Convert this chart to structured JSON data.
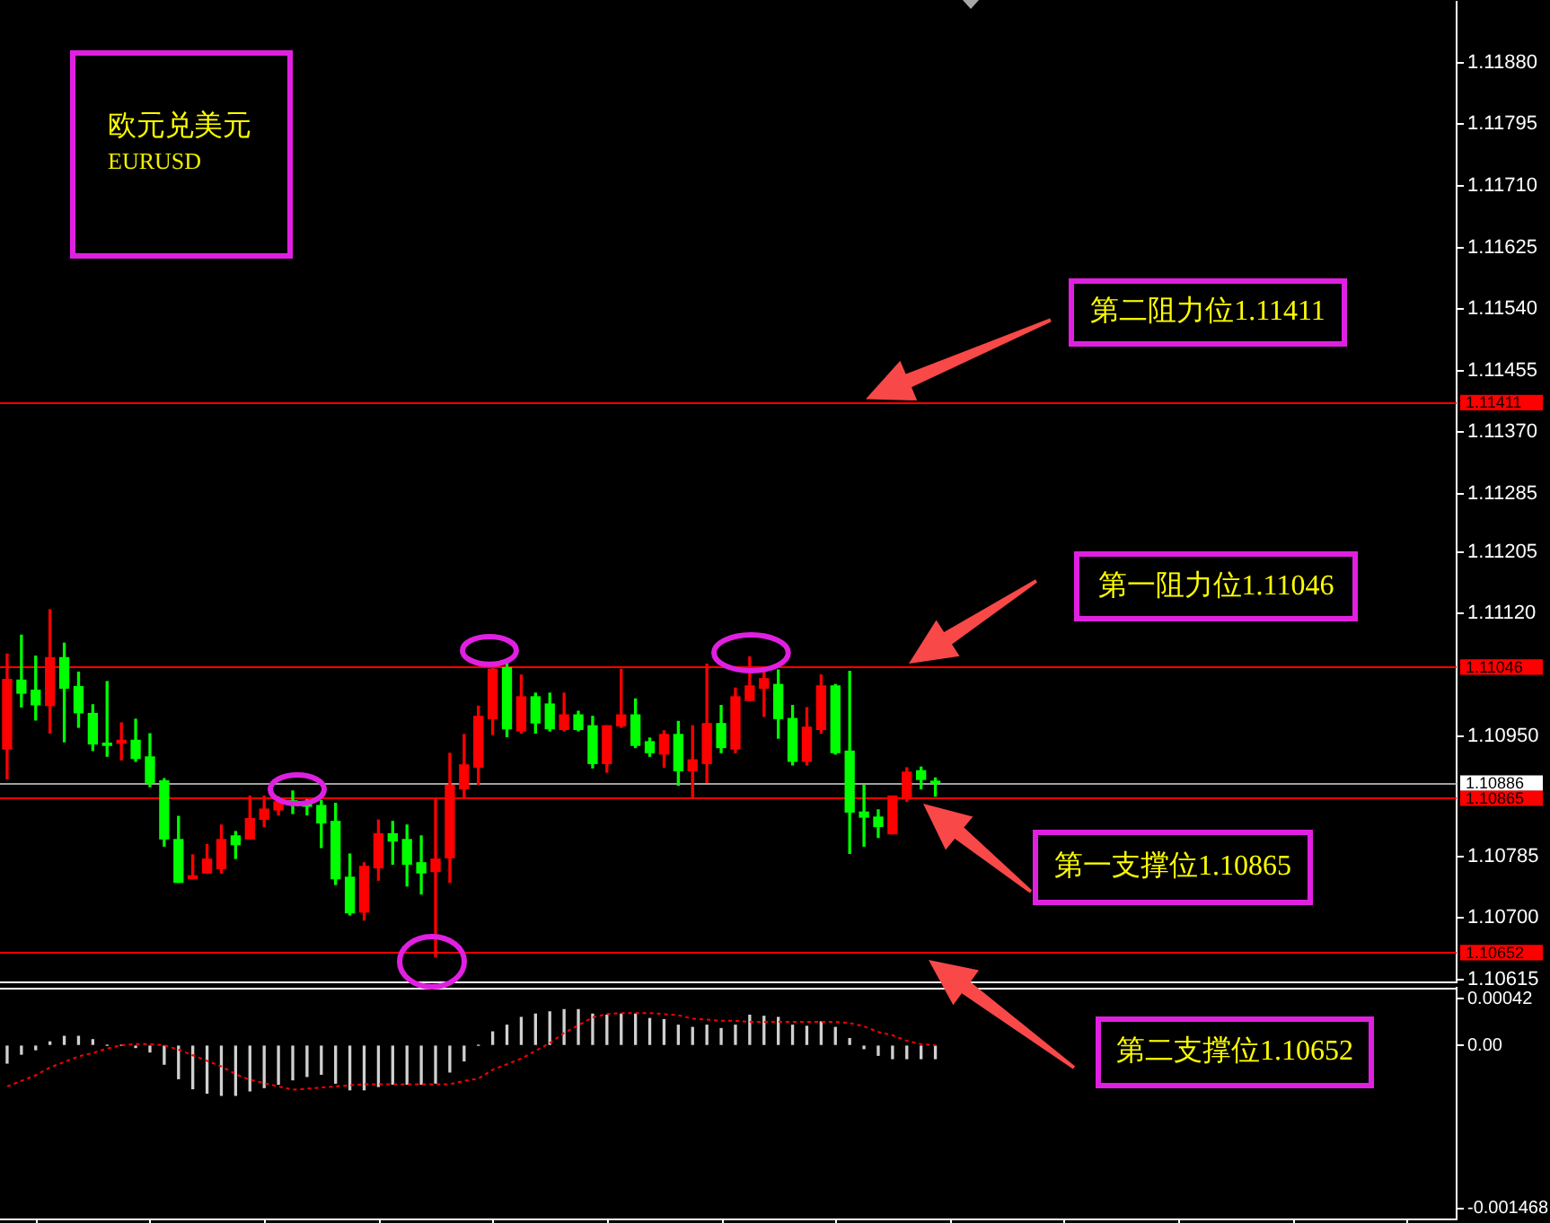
{
  "chart_data": [
    {
      "type": "candlestick",
      "title": "欧元兑美元",
      "subtitle": "EURUSD",
      "categories": [
        null,
        null,
        null,
        null,
        null,
        null,
        null,
        null,
        null,
        null,
        null,
        null,
        null,
        null,
        null,
        null,
        null,
        null,
        null,
        null,
        null,
        null,
        null,
        null,
        null,
        null,
        null,
        null,
        null,
        null,
        null,
        null,
        null,
        null,
        null,
        null,
        null,
        null,
        null,
        null,
        null,
        null,
        null,
        null,
        null,
        null,
        null,
        null,
        null,
        null,
        null,
        null,
        null,
        null,
        null,
        null,
        null,
        null,
        null,
        null,
        null,
        null,
        null,
        null,
        null,
        null,
        null,
        null,
        null,
        null,
        null,
        null,
        null,
        null,
        null,
        null,
        null,
        null,
        null,
        null,
        null,
        null,
        null,
        null,
        null,
        null,
        null,
        null,
        null,
        null,
        null,
        null,
        null,
        null,
        null,
        null,
        null,
        null,
        null,
        null,
        null,
        null
      ],
      "ohlc": [
        [
          1.10933,
          1.11064,
          1.10892,
          1.11029
        ],
        [
          1.11028,
          1.1109,
          1.10991,
          1.1101
        ],
        [
          1.11014,
          1.11061,
          1.10973,
          1.10994
        ],
        [
          1.10993,
          1.11125,
          1.10955,
          1.11059
        ],
        [
          1.11059,
          1.11079,
          1.10943,
          1.11017
        ],
        [
          1.11019,
          1.11039,
          1.10963,
          1.10983
        ],
        [
          1.10982,
          1.10994,
          1.10931,
          1.1094
        ],
        [
          1.10941,
          1.11026,
          1.10923,
          1.10938
        ],
        [
          1.10941,
          1.10969,
          1.10918,
          1.10945
        ],
        [
          1.10945,
          1.10974,
          1.10916,
          1.1092
        ],
        [
          1.10922,
          1.10954,
          1.10881,
          1.10887
        ],
        [
          1.10889,
          1.10892,
          1.10799,
          1.10809
        ],
        [
          1.10808,
          1.1084,
          1.10749,
          1.10749
        ],
        [
          1.10754,
          1.10787,
          1.10754,
          1.10758
        ],
        [
          1.10762,
          1.10801,
          1.10762,
          1.10781
        ],
        [
          1.10768,
          1.10828,
          1.10762,
          1.10808
        ],
        [
          1.10813,
          1.10819,
          1.10782,
          1.10801
        ],
        [
          1.10809,
          1.10868,
          1.10809,
          1.10837
        ],
        [
          1.10836,
          1.10868,
          1.10826,
          1.1085
        ],
        [
          1.10849,
          1.10867,
          1.10842,
          1.1086
        ],
        [
          1.1086,
          1.10875,
          1.10844,
          1.10859
        ],
        [
          1.10859,
          1.10863,
          1.10842,
          1.10854
        ],
        [
          1.10855,
          1.10862,
          1.10797,
          1.10831
        ],
        [
          1.10833,
          1.10858,
          1.10746,
          1.10754
        ],
        [
          1.10756,
          1.10788,
          1.10704,
          1.10707
        ],
        [
          1.10708,
          1.10776,
          1.10697,
          1.10771
        ],
        [
          1.10769,
          1.10835,
          1.10752,
          1.10816
        ],
        [
          1.10816,
          1.10833,
          1.10774,
          1.10806
        ],
        [
          1.10808,
          1.10828,
          1.10744,
          1.10774
        ],
        [
          1.10776,
          1.10813,
          1.10733,
          1.10762
        ],
        [
          1.10764,
          1.10864,
          1.10646,
          1.10781
        ],
        [
          1.10783,
          1.10927,
          1.10749,
          1.10883
        ],
        [
          1.10878,
          1.10953,
          1.10865,
          1.10911
        ],
        [
          1.10908,
          1.10992,
          1.10884,
          1.10978
        ],
        [
          1.10975,
          1.1105,
          1.10953,
          1.11043
        ],
        [
          1.11045,
          1.11053,
          1.1095,
          1.10961
        ],
        [
          1.10958,
          1.11035,
          1.10955,
          1.11005
        ],
        [
          1.11005,
          1.1101,
          1.10955,
          1.10969
        ],
        [
          1.10995,
          1.1101,
          1.10958,
          1.10961
        ],
        [
          1.1096,
          1.1101,
          1.10958,
          1.1098
        ],
        [
          1.1098,
          1.10985,
          1.10958,
          1.1096
        ],
        [
          1.10965,
          1.10978,
          1.10907,
          1.10913
        ],
        [
          1.10913,
          1.10965,
          1.10901,
          1.10965
        ],
        [
          1.10965,
          1.11043,
          1.10963,
          1.1098
        ],
        [
          1.1098,
          1.11002,
          1.10935,
          1.10938
        ],
        [
          1.10943,
          1.10948,
          1.10923,
          1.10928
        ],
        [
          1.10926,
          1.10958,
          1.10908,
          1.10953
        ],
        [
          1.10953,
          1.10971,
          1.10883,
          1.10903
        ],
        [
          1.10903,
          1.10965,
          1.10865,
          1.10918
        ],
        [
          1.10913,
          1.1105,
          1.10887,
          1.10968
        ],
        [
          1.10968,
          1.10993,
          1.10928,
          1.10935
        ],
        [
          1.10933,
          1.11017,
          1.10928,
          1.11005
        ],
        [
          1.11,
          1.1106,
          1.11,
          1.1102
        ],
        [
          1.11017,
          1.11042,
          1.10978,
          1.1103
        ],
        [
          1.11022,
          1.11042,
          1.10948,
          1.10975
        ],
        [
          1.10975,
          1.10993,
          1.10911,
          1.10916
        ],
        [
          1.10916,
          1.1099,
          1.10911,
          1.10963
        ],
        [
          1.1096,
          1.11035,
          1.10955,
          1.1102
        ],
        [
          1.1102,
          1.11022,
          1.10926,
          1.10928
        ],
        [
          1.1093,
          1.1104,
          1.10789,
          1.10846
        ],
        [
          1.10846,
          1.10883,
          1.10799,
          1.10839
        ],
        [
          1.10839,
          1.10849,
          1.10811,
          1.10826
        ],
        [
          1.10816,
          1.10868,
          1.10816,
          1.10868
        ],
        [
          1.10864,
          1.10907,
          1.10861,
          1.10901
        ],
        [
          1.10903,
          1.10908,
          1.10878,
          1.10891
        ],
        [
          1.10888,
          1.10893,
          1.10868,
          1.10886
        ],
        null,
        null,
        null,
        null,
        null,
        null,
        null,
        null,
        null,
        null,
        null,
        null,
        null,
        null,
        null,
        null,
        null,
        null,
        null,
        null,
        null,
        null,
        null,
        null,
        null,
        null,
        null,
        null,
        null,
        null,
        null,
        null,
        null,
        null,
        null,
        null
      ],
      "colors": [
        "#ff0000",
        "#00ff00",
        "#00ff00",
        "#ff0000",
        "#00ff00",
        "#00ff00",
        "#00ff00",
        "#00ff00",
        "#ff0000",
        "#00ff00",
        "#00ff00",
        "#00ff00",
        "#00ff00",
        "#ff0000",
        "#ff0000",
        "#ff0000",
        "#00ff00",
        "#ff0000",
        "#ff0000",
        "#ff0000",
        "#00ff00",
        "#00ff00",
        "#00ff00",
        "#00ff00",
        "#00ff00",
        "#ff0000",
        "#ff0000",
        "#00ff00",
        "#00ff00",
        "#00ff00",
        "#ff0000",
        "#ff0000",
        "#ff0000",
        "#ff0000",
        "#ff0000",
        "#00ff00",
        "#ff0000",
        "#00ff00",
        "#00ff00",
        "#ff0000",
        "#00ff00",
        "#00ff00",
        "#ff0000",
        "#ff0000",
        "#00ff00",
        "#00ff00",
        "#ff0000",
        "#00ff00",
        "#ff0000",
        "#ff0000",
        "#00ff00",
        "#ff0000",
        "#ff0000",
        "#ff0000",
        "#00ff00",
        "#00ff00",
        "#ff0000",
        "#ff0000",
        "#00ff00",
        "#00ff00",
        "#00ff00",
        "#00ff00",
        "#ff0000",
        "#ff0000",
        "#00ff00",
        "#00ff00",
        null,
        null,
        null,
        null,
        null,
        null,
        null,
        null,
        null,
        null,
        null,
        null,
        null,
        null,
        null,
        null,
        null,
        null,
        null,
        null,
        null,
        null,
        null,
        null,
        null,
        null,
        null,
        null,
        null,
        null,
        null,
        null,
        null,
        null,
        null,
        null
      ],
      "ylim": [
        1.10611,
        1.11964
      ],
      "yticks": [
        {
          "value": 1.1188,
          "label": "1.11880"
        },
        1.11795,
        {
          "value": 1.1171,
          "label": "1.11710"
        },
        1.11625,
        {
          "value": 1.1154,
          "label": "1.11540"
        },
        1.11455,
        {
          "value": 1.1137,
          "label": "1.11370"
        },
        1.11285,
        1.11205,
        {
          "value": 1.1112,
          "label": "1.11120"
        },
        {
          "value": 1.1095,
          "label": "1.10950"
        },
        1.10785,
        {
          "value": 1.107,
          "label": "1.10700"
        },
        1.10615
      ],
      "ref_lines": [
        {
          "axis": "y",
          "value": 1.11411,
          "label": "1.11411",
          "color": "#ff0000"
        },
        {
          "axis": "y",
          "value": 1.11046,
          "label": "1.11046",
          "color": "#ff0000"
        },
        {
          "axis": "y",
          "value": 1.10886,
          "label": "1.10886",
          "color": "#a0a0a0"
        },
        {
          "axis": "y",
          "value": 1.10865,
          "label": "1.10865",
          "color": "#ff0000"
        },
        {
          "axis": "y",
          "value": 1.10652,
          "label": "1.10652",
          "color": "#ff0000"
        }
      ],
      "annotations": [
        {
          "text": "第二阻力位1.11411",
          "y": 1.11411
        },
        {
          "text": "第一阻力位1.11046",
          "y": 1.11046
        },
        {
          "text": "第一支撑位1.10865",
          "y": 1.10865
        },
        {
          "text": "第二支撑位1.10652",
          "y": 1.10652
        }
      ],
      "tick_labels": "y"
    },
    {
      "type": "bar",
      "categories": [
        null,
        null,
        null,
        null,
        null,
        null,
        null,
        null,
        null,
        null,
        null,
        null,
        null,
        null,
        null,
        null,
        null,
        null,
        null,
        null,
        null,
        null,
        null,
        null,
        null,
        null,
        null,
        null,
        null,
        null,
        null,
        null,
        null,
        null,
        null,
        null,
        null,
        null,
        null,
        null,
        null,
        null,
        null,
        null,
        null,
        null,
        null,
        null,
        null,
        null,
        null,
        null,
        null,
        null,
        null,
        null,
        null,
        null,
        null,
        null,
        null,
        null,
        null,
        null,
        null,
        null,
        null,
        null,
        null,
        null,
        null,
        null,
        null,
        null,
        null,
        null,
        null,
        null,
        null,
        null,
        null,
        null,
        null,
        null,
        null,
        null,
        null,
        null,
        null,
        null,
        null,
        null,
        null,
        null,
        null,
        null,
        null,
        null,
        null,
        null,
        null,
        null
      ],
      "series": [
        {
          "type": "bar",
          "color": "#d0d0d0",
          "values": [
            -0.00016,
            -8e-05,
            -4e-05,
            3e-05,
            8e-05,
            8e-05,
            5e-05,
            0,
            0,
            -2e-05,
            -6e-05,
            -0.00017,
            -0.0003,
            -0.00039,
            -0.00043,
            -0.00045,
            -0.00045,
            -0.00041,
            -0.00038,
            -0.00035,
            -0.00031,
            -0.00028,
            -0.00026,
            -0.00034,
            -0.0004,
            -0.0004,
            -0.00037,
            -0.00035,
            -0.00035,
            -0.00035,
            -0.00034,
            -0.00024,
            -0.00014,
            0,
            0.00012,
            0.00018,
            0.00025,
            0.00028,
            0.0003,
            0.00032,
            0.00032,
            0.00028,
            0.00027,
            0.00028,
            0.00028,
            0.00024,
            0.00023,
            0.00018,
            0.00016,
            0.00018,
            0.00015,
            0.00018,
            0.00027,
            0.00026,
            0.00025,
            0.00018,
            0.00017,
            0.00021,
            0.00016,
            6e-05,
            -3e-05,
            -9e-05,
            -0.00012,
            -0.00012,
            -0.00012,
            -0.00012,
            null,
            null,
            null,
            null,
            null,
            null,
            null,
            null,
            null,
            null,
            null,
            null,
            null,
            null,
            null,
            null,
            null,
            null,
            null,
            null,
            null,
            null,
            null,
            null,
            null,
            null,
            null,
            null,
            null,
            null,
            null,
            null,
            null,
            null,
            null,
            null
          ]
        },
        {
          "type": "line",
          "color": "#ff0000",
          "line_style": "dotted",
          "values": [
            -0.00037,
            -0.00032,
            -0.00027,
            -0.0002,
            -0.00015,
            -0.0001,
            -7e-05,
            -3e-05,
            0,
            1e-05,
            1e-05,
            0,
            -4e-05,
            -9e-05,
            -0.00014,
            -0.00019,
            -0.00026,
            -0.00031,
            -0.00034,
            -0.00037,
            -0.0004,
            -0.00039,
            -0.00038,
            -0.00037,
            -0.00036,
            -0.00035,
            -0.00035,
            -0.00035,
            -0.00035,
            -0.00035,
            -0.00035,
            -0.00035,
            -0.00032,
            -0.0003,
            -0.00022,
            -0.00017,
            -0.00012,
            -5e-05,
            2e-05,
            0.00011,
            0.00018,
            0.00025,
            0.00028,
            0.00029,
            0.00029,
            0.00029,
            0.00028,
            0.00027,
            0.00024,
            0.00023,
            0.00022,
            0.00022,
            0.00021,
            0.00021,
            0.00021,
            0.00021,
            0.00021,
            0.00021,
            0.00021,
            0.0002,
            0.00017,
            0.00012,
            9e-05,
            4e-05,
            1e-05,
            0,
            null,
            null,
            null,
            null,
            null,
            null,
            null,
            null,
            null,
            null,
            null,
            null,
            null,
            null,
            null,
            null,
            null,
            null,
            null,
            null,
            null,
            null,
            null,
            null,
            null,
            null,
            null,
            null,
            null,
            null,
            null,
            null,
            null,
            null,
            null,
            null
          ]
        }
      ],
      "ylim": [
        -0.001565,
        0.000517
      ],
      "yticks": [
        0.00042,
        {
          "value": 0,
          "label": "0.00"
        },
        -0.001468
      ],
      "tick_labels": "y"
    }
  ]
}
